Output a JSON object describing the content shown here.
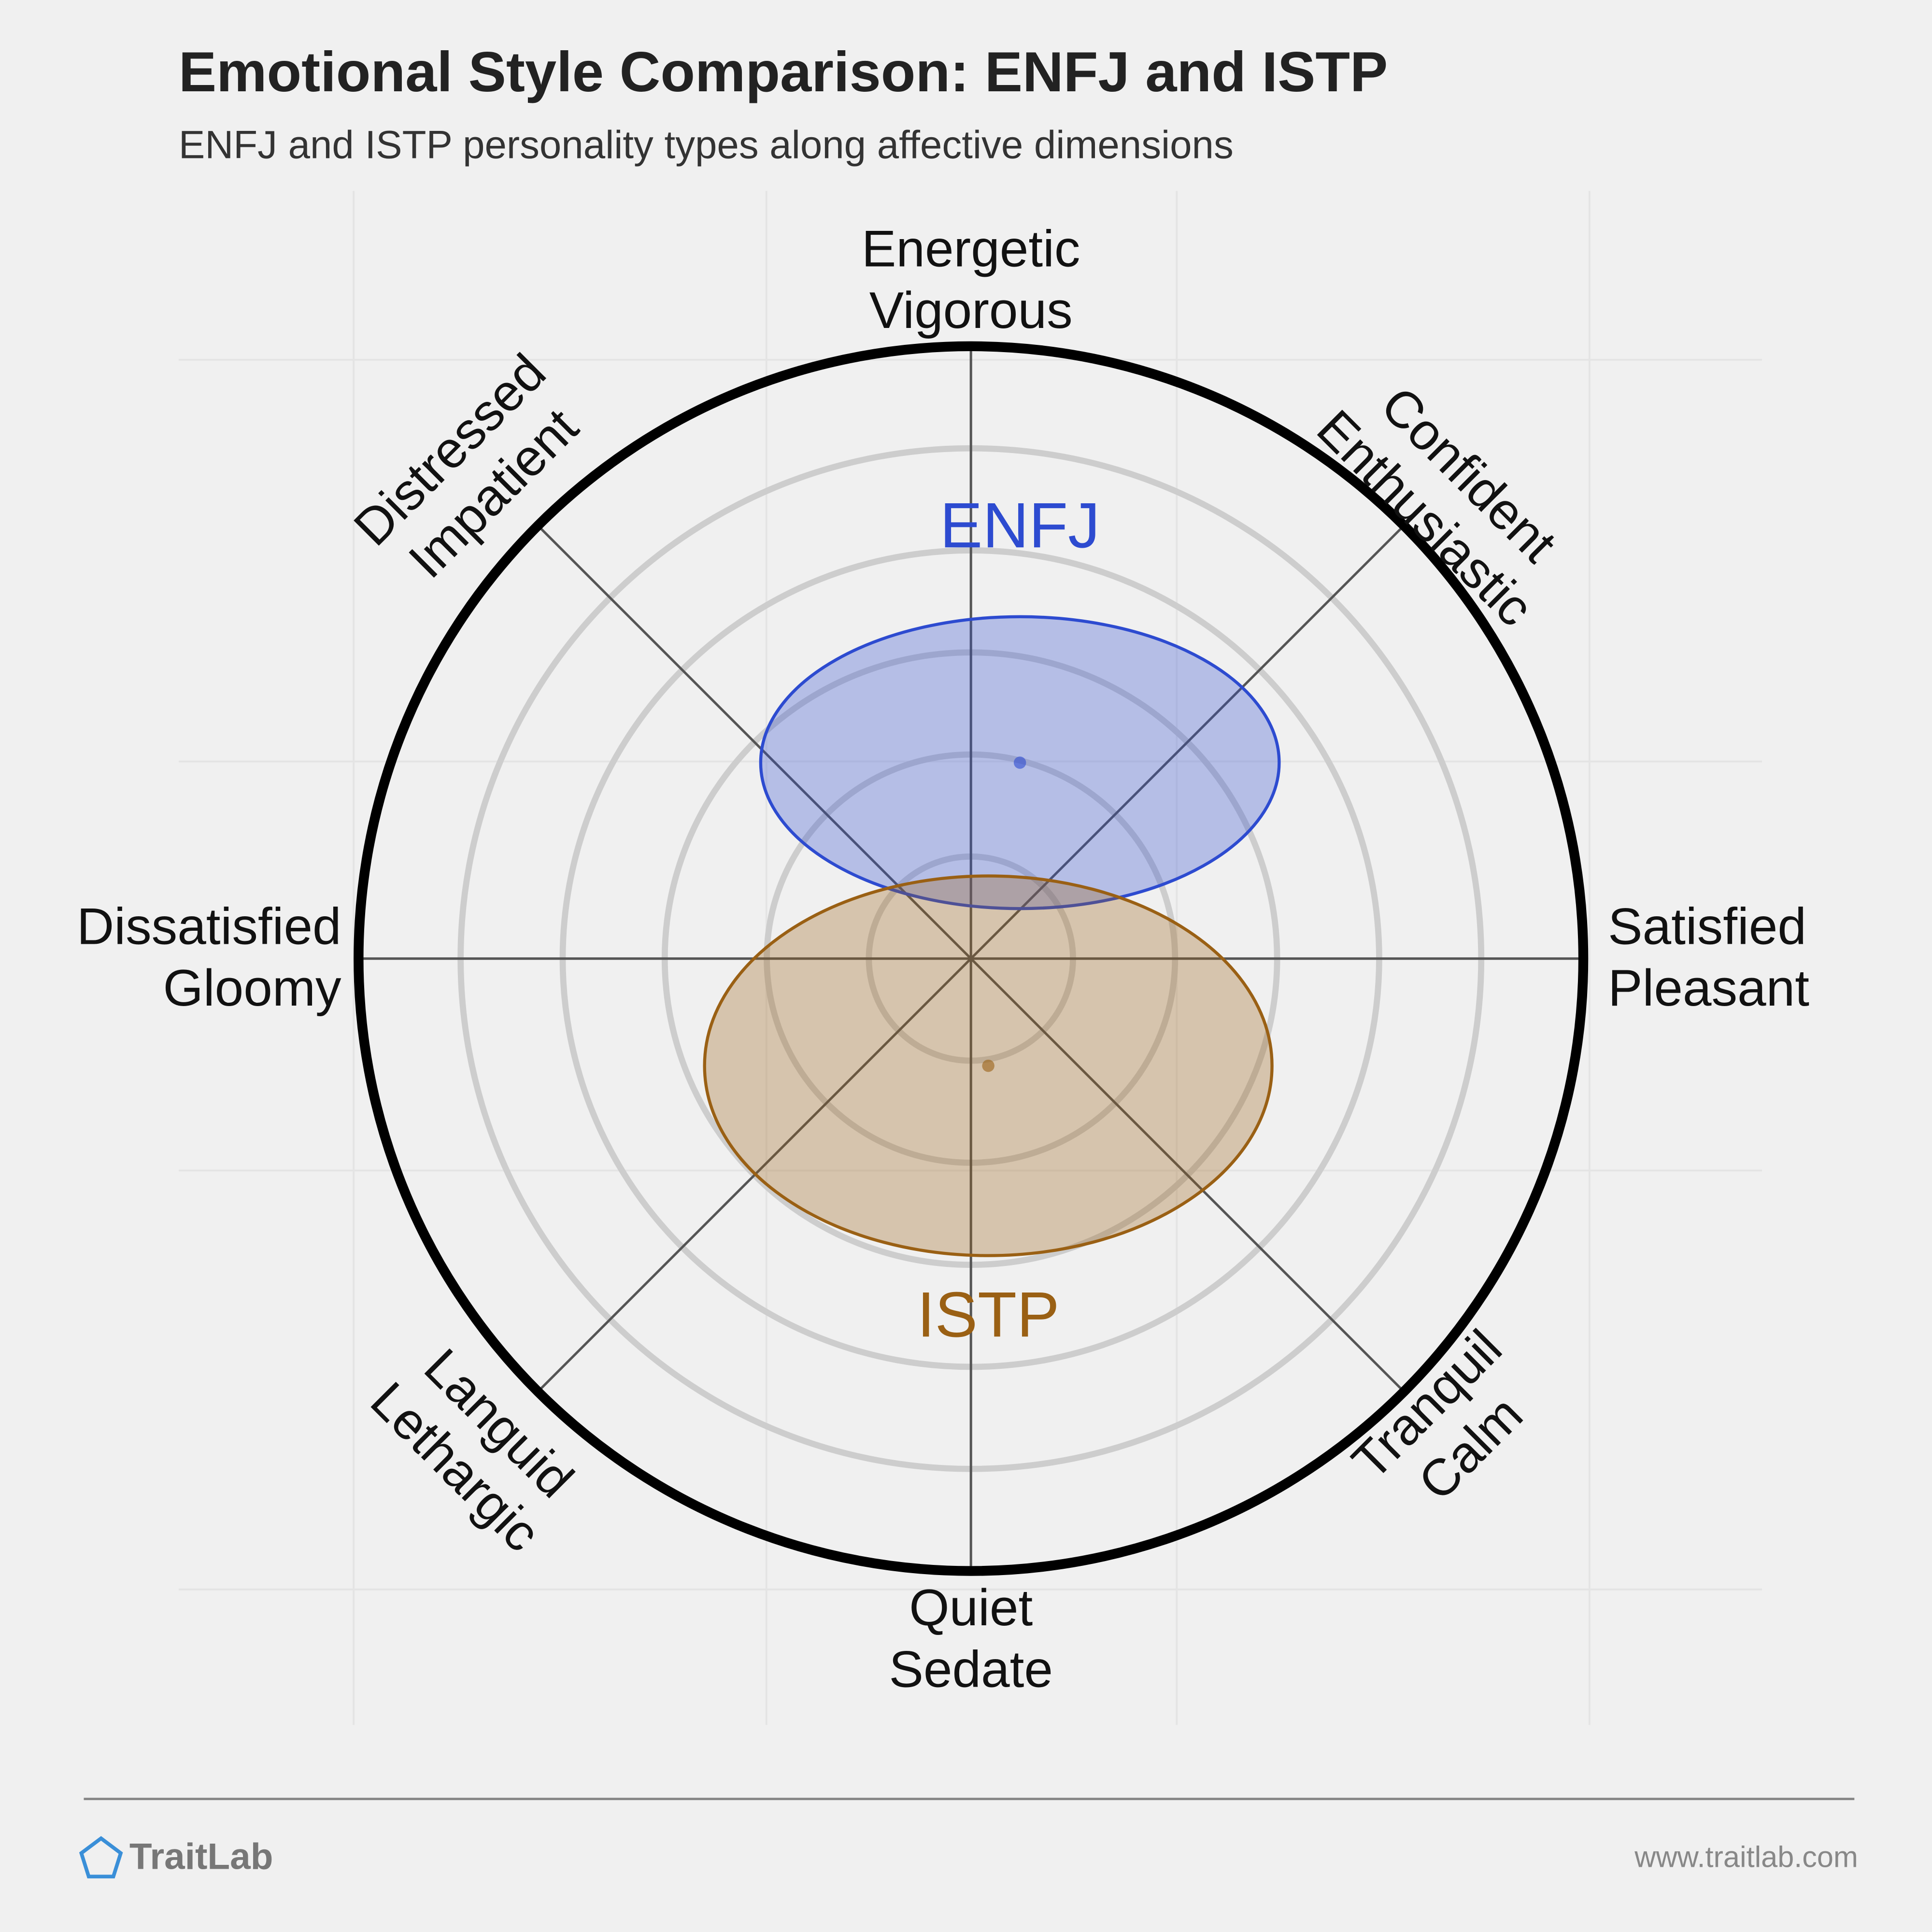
{
  "chart_data": {
    "type": "circumplex",
    "title": "Emotional Style Comparison: ENFJ and ISTP",
    "subtitle": "ENFJ and ISTP personality types along affective dimensions",
    "axis_labels": [
      [
        "Energetic",
        "Vigorous"
      ],
      [
        "Confident",
        "Enthusiastic"
      ],
      [
        "Satisfied",
        "Pleasant"
      ],
      [
        "Tranquil",
        "Calm"
      ],
      [
        "Quiet",
        "Sedate"
      ],
      [
        "Languid",
        "Lethargic"
      ],
      [
        "Dissatisfied",
        "Gloomy"
      ],
      [
        "Distressed",
        "Impatient"
      ]
    ],
    "rlim": [
      0,
      6
    ],
    "rticks": [
      1,
      2,
      3,
      4,
      5
    ],
    "series": [
      {
        "name": "ENFJ",
        "color": "#2d4bd0",
        "x": 0.48,
        "y": 1.92,
        "rx": 2.54,
        "ry": 1.43
      },
      {
        "name": "ISTP",
        "color": "#9a6014",
        "x": 0.17,
        "y": -1.05,
        "rx": 2.78,
        "ry": 1.86
      }
    ],
    "footer": {
      "brand": "TraitLab",
      "url": "www.traitlab.com"
    }
  }
}
